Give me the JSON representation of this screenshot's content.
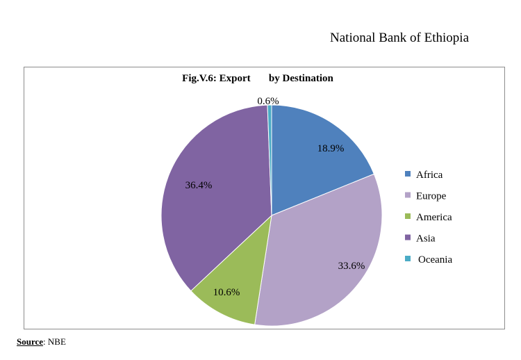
{
  "header": {
    "text": "National Bank of Ethiopia"
  },
  "source": {
    "label": "Source",
    "rest": ": NBE"
  },
  "chart_data": {
    "type": "pie",
    "title": "Fig.V.6: Export       by Destination",
    "slices": [
      {
        "name": "Africa",
        "value": 18.9,
        "label": "18.9%",
        "color": "#4f81bd"
      },
      {
        "name": "Europe",
        "value": 33.6,
        "label": "33.6%",
        "color": "#b3a2c7"
      },
      {
        "name": "America",
        "value": 10.6,
        "label": "10.6%",
        "color": "#9bbb59"
      },
      {
        "name": "Asia",
        "value": 36.4,
        "label": "36.4%",
        "color": "#8064a2"
      },
      {
        "name": "Oceania",
        "value": 0.6,
        "label": "0.6%",
        "color": "#4bacc6"
      }
    ],
    "legend_position": "right"
  }
}
